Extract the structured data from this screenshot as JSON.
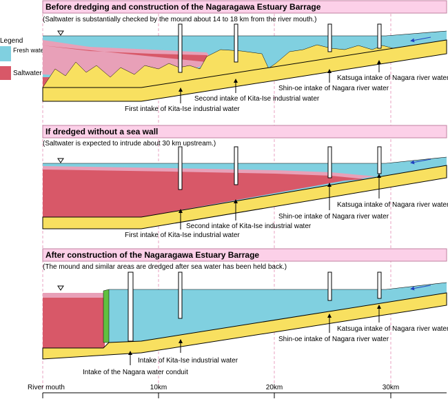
{
  "legend": {
    "title": "Legend",
    "items": [
      "Fresh water",
      "Saltwater"
    ]
  },
  "panels": [
    {
      "title": "Before dredging and construction of the Nagaragawa Estuary Barrage",
      "subtitle": "(Saltwater is substantially checked by the mound about 14 to 18 km from the river mouth.)",
      "labels": [
        "Katsuga intake of Nagara river water",
        "Shin-oe intake of Nagara river water",
        "Second intake of Kita-Ise industrial water",
        "First intake of Kita-Ise industrial water"
      ]
    },
    {
      "title": "If dredged without a sea wall",
      "subtitle": "(Saltwater is expected to intrude about 30 km upstream.)",
      "labels": [
        "Katsuga intake of Nagara river water",
        "Shin-oe intake of Nagara river water",
        "Second intake of Kita-Ise industrial water",
        "First intake of Kita-Ise industrial water"
      ]
    },
    {
      "title": "After construction of the Nagaragawa Estuary Barrage",
      "subtitle": "(The mound and similar areas are dredged after sea water has been held back.)",
      "labels": [
        "Katsuga intake of Nagara river water",
        "Shin-oe intake of Nagara river water",
        "Intake of Kita-Ise industrial water",
        "Intake of the Nagara water conduit"
      ]
    }
  ],
  "axis": {
    "labels": [
      "River mouth",
      "10km",
      "20km",
      "30km"
    ]
  }
}
